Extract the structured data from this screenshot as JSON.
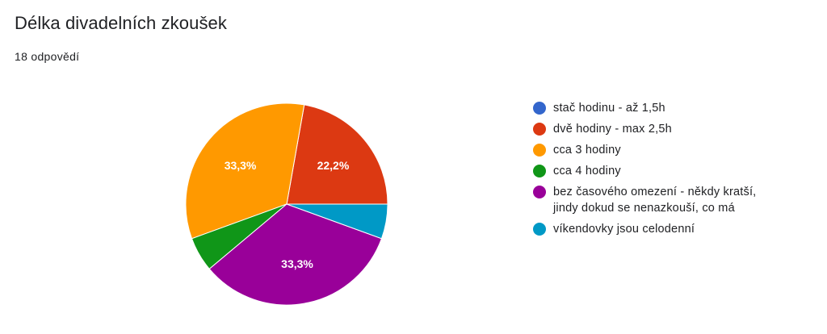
{
  "title": "Délka divadelních zkoušek",
  "response_count": "18 odpovědí",
  "chart_data": {
    "type": "pie",
    "title": "Délka divadelních zkoušek",
    "categories": [
      "stač hodinu - až 1,5h",
      "dvě hodiny - max 2,5h",
      "cca 3 hodiny",
      "cca 4 hodiny",
      "bez časového omezení - někdy kratší, jindy dokud se nenazkouší, co má",
      "víkendovky jsou celodenní"
    ],
    "legend_lines": [
      [
        "stač hodinu - až 1,5h"
      ],
      [
        "dvě hodiny - max 2,5h"
      ],
      [
        "cca 3 hodiny"
      ],
      [
        "cca 4 hodiny"
      ],
      [
        "bez časového omezení - někdy kratší,",
        "jindy dokud se nenazkouší, co má"
      ],
      [
        "víkendovky jsou celodenní"
      ]
    ],
    "values": [
      0,
      4,
      6,
      1,
      6,
      1
    ],
    "percent_labels": [
      "",
      "22,2%",
      "33,3%",
      "",
      "33,3%",
      ""
    ],
    "colors": [
      "#3366cc",
      "#dc3912",
      "#ff9900",
      "#109618",
      "#990099",
      "#0099c6"
    ],
    "legend_position": "right"
  }
}
